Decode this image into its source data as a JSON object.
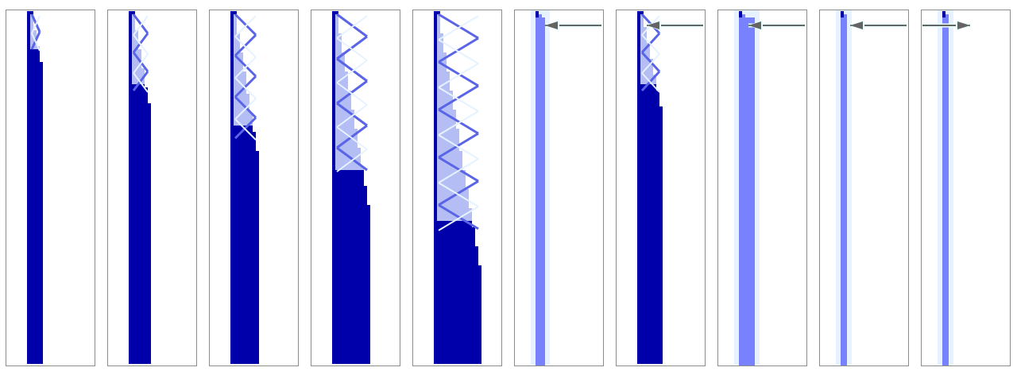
{
  "figure": {
    "colors": {
      "background": "#ffffff",
      "frame": "#8c8c8c",
      "dark": "#0000aa",
      "light": "#b4bef5",
      "medium": "#5a64e6",
      "pale": "#e6f2ff",
      "column": "#7882ff",
      "highlight": "#e6ffff",
      "arrow": "#646464"
    },
    "panels": [
      {
        "type": "evolution",
        "cells": 5,
        "steps": 1
      },
      {
        "type": "evolution",
        "cells": 7,
        "steps": 2
      },
      {
        "type": "evolution",
        "cells": 9,
        "steps": 3
      },
      {
        "type": "evolution",
        "cells": 12,
        "steps": 4
      },
      {
        "type": "evolution",
        "cells": 15,
        "steps": 5
      },
      {
        "type": "column",
        "columns": 3,
        "arrow": "left"
      },
      {
        "type": "evolution",
        "cells": 8,
        "steps": 2,
        "arrow": "left"
      },
      {
        "type": "column",
        "columns": 5,
        "arrow": "left"
      },
      {
        "type": "column",
        "columns": 2,
        "arrow": "left"
      },
      {
        "type": "column",
        "columns": 2,
        "arrow": "right"
      }
    ]
  }
}
